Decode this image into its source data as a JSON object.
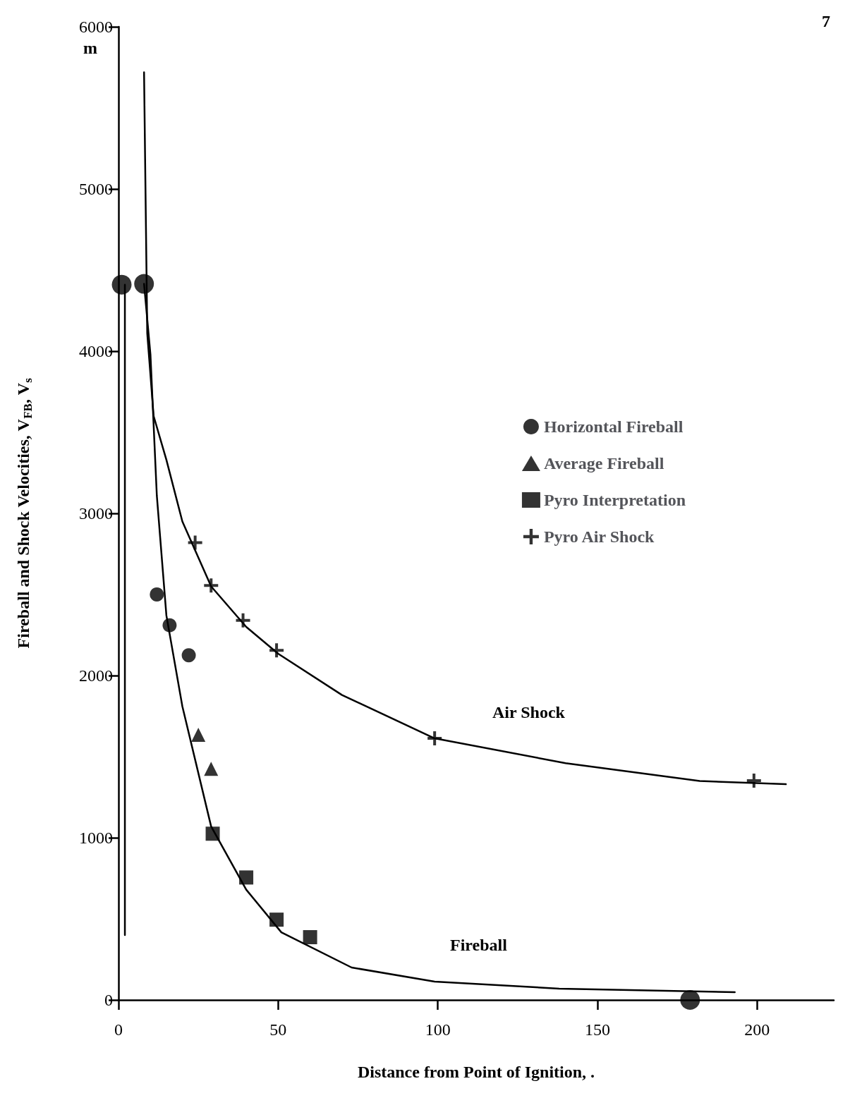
{
  "chart_data": {
    "type": "scatter",
    "xlabel": "Distance from Point of Ignition, .",
    "ylabel": "Fireball and Shock Velocities, V$_{FB}$, V$_{s}$",
    "xlim": [
      0,
      224
    ],
    "xticks": [
      0,
      50,
      100,
      150,
      200
    ],
    "ylim": [
      0,
      6000
    ],
    "yticks": [
      0,
      1000,
      2000,
      3000,
      4000,
      5000,
      6000
    ],
    "grid": false,
    "legend": "right",
    "annotations": [
      "m",
      "7",
      "Air Shock",
      "Fireball"
    ],
    "series": [
      {
        "name": "Horizontal Fireball",
        "marker": "circle",
        "color": "#000000",
        "x": [
          12,
          16,
          22
        ],
        "values": [
          2500,
          2310,
          2125
        ]
      },
      {
        "name": "Average Fireball",
        "marker": "triangle",
        "color": "#000000",
        "x": [
          25,
          29
        ],
        "values": [
          1635,
          1425
        ]
      },
      {
        "name": "Pyro Interpretation",
        "marker": "square",
        "color": "#000000",
        "x": [
          29.5,
          40,
          49.5,
          60
        ],
        "values": [
          1025,
          755,
          495,
          387
        ]
      },
      {
        "name": "Pyro Air Shock",
        "marker": "cross",
        "color": "#000000",
        "x": [
          24,
          29,
          39,
          49.5,
          99,
          199
        ],
        "values": [
          2820,
          2555,
          2340,
          2155,
          1613,
          1352
        ]
      },
      {
        "marker": "circle",
        "color": "#000000",
        "x": [
          1,
          8,
          179
        ],
        "values": [
          4410,
          4415,
          0
        ]
      },
      {
        "type": "line",
        "marker": "none",
        "color": "#000000",
        "x": [
          8,
          9,
          11,
          15,
          20,
          29,
          40,
          50,
          70,
          99,
          140,
          182,
          209
        ],
        "values": [
          5720,
          4110,
          3600,
          3330,
          2950,
          2550,
          2300,
          2135,
          1880,
          1613,
          1460,
          1350,
          1330
        ]
      },
      {
        "type": "line",
        "marker": "none",
        "color": "#000000",
        "x": [
          8,
          10,
          12,
          15,
          20,
          29,
          40,
          51,
          73,
          99,
          138,
          193
        ],
        "values": [
          4415,
          3980,
          3110,
          2370,
          1810,
          1070,
          680,
          417,
          200,
          113,
          70,
          48
        ]
      },
      {
        "type": "line",
        "marker": "none",
        "color": "#000000",
        "x": [
          2,
          2
        ],
        "values": [
          4410,
          400
        ]
      }
    ]
  }
}
